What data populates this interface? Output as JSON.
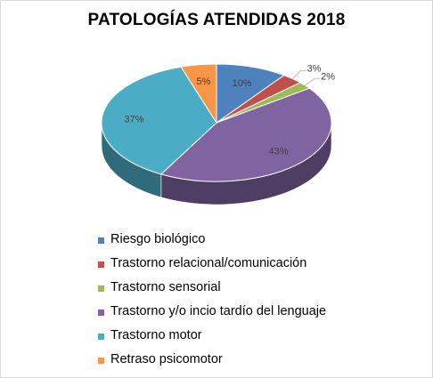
{
  "chart_data": {
    "type": "pie",
    "title": "PATOLOGÍAS ATENDIDAS 2018",
    "legend_position": "bottom",
    "slices": [
      {
        "label": "Riesgo biológico",
        "value": 10,
        "display": "10%",
        "color": "#4f81bd"
      },
      {
        "label": "Trastorno relacional/comunicación",
        "value": 3,
        "display": "3%",
        "color": "#c0504d"
      },
      {
        "label": "Trastorno sensorial",
        "value": 2,
        "display": "2%",
        "color": "#9bbb59"
      },
      {
        "label": "Trastorno y/o incio tardío del lenguaje",
        "value": 43,
        "display": "43%",
        "color": "#8064a2"
      },
      {
        "label": "Trastorno motor",
        "value": 37,
        "display": "37%",
        "color": "#4bacc6"
      },
      {
        "label": "Retraso psicomotor",
        "value": 5,
        "display": "5%",
        "color": "#f79646"
      }
    ]
  }
}
